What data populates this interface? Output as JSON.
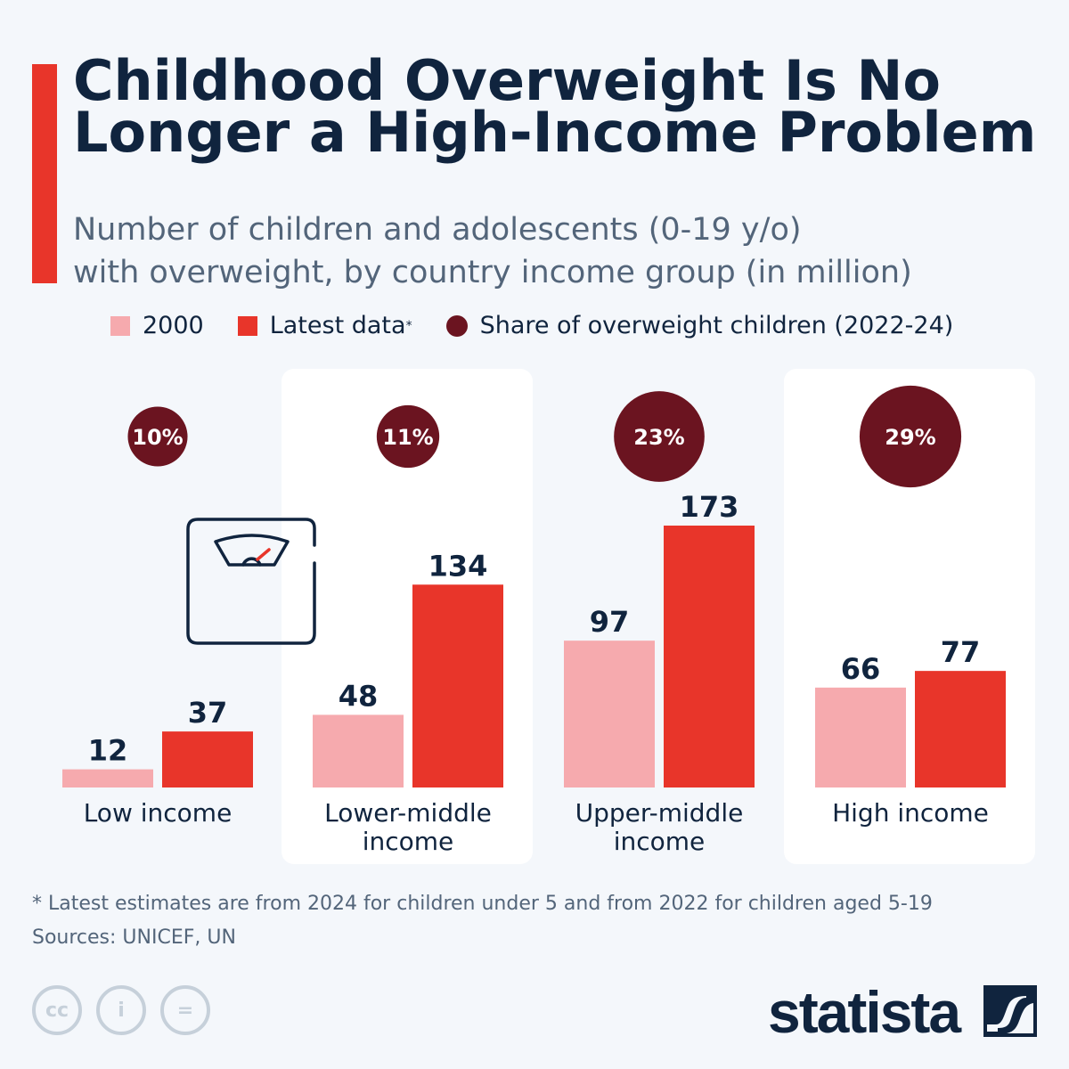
{
  "title": "Childhood Overweight Is No Longer a High-Income Problem",
  "subtitle_line1": "Number of children and adolescents (0-19 y/o)",
  "subtitle_line2": "with overweight, by country income group (in million)",
  "legend": {
    "s2000": "2000",
    "latest": "Latest data",
    "latest_mark": "*",
    "share": "Share of overweight children (2022-24)"
  },
  "colors": {
    "s2000": "#f6aaae",
    "latest": "#e8352a",
    "share": "#6b1420",
    "text": "#10243e",
    "panel": "#ffffff"
  },
  "chart_data": {
    "type": "bar",
    "categories": [
      [
        "Low income"
      ],
      [
        "Lower-middle",
        "income"
      ],
      [
        "Upper-middle",
        "income"
      ],
      [
        "High income"
      ]
    ],
    "series": [
      {
        "name": "2000",
        "values": [
          12,
          48,
          97,
          66
        ]
      },
      {
        "name": "Latest data",
        "values": [
          37,
          134,
          173,
          77
        ]
      }
    ],
    "share_series": {
      "name": "Share of overweight children (2022-24)",
      "values": [
        10,
        11,
        23,
        29
      ],
      "labels": [
        "10%",
        "11%",
        "23%",
        "29%"
      ]
    },
    "ylim": [
      0,
      173
    ],
    "grid": false,
    "legend_position": "top"
  },
  "footnote": "* Latest estimates are from 2024 for children under 5 and from 2022 for children aged 5-19",
  "sources": "Sources: UNICEF, UN",
  "license_icons": [
    "cc-icon",
    "attribution-icon",
    "no-derivatives-icon"
  ],
  "brand": "statista"
}
